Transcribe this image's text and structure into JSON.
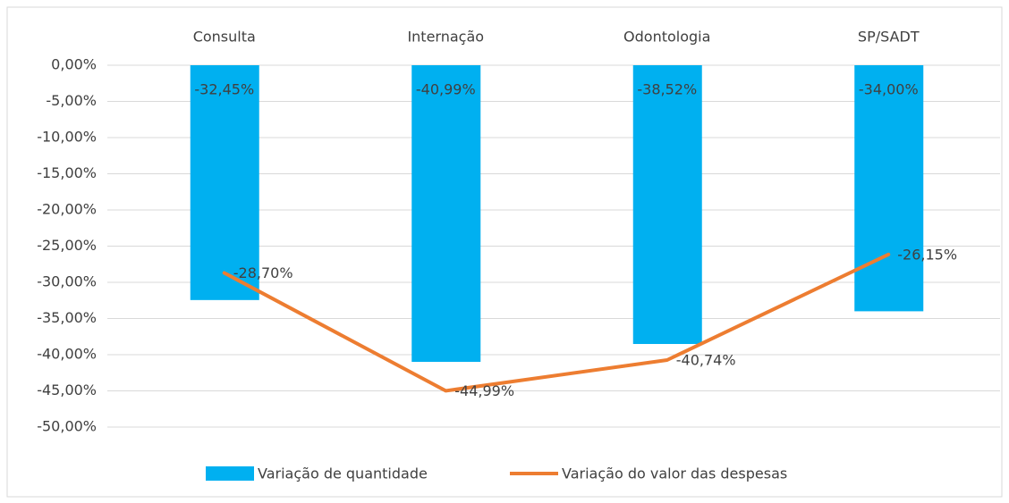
{
  "chart_data": {
    "type": "bar",
    "categories": [
      "Consulta",
      "Internação",
      "Odontologia",
      "SP/SADT"
    ],
    "series": [
      {
        "name": "Variação de quantidade",
        "type": "bar",
        "color": "#00b0f0",
        "values": [
          -32.45,
          -40.99,
          -38.52,
          -34.0
        ],
        "value_labels": [
          "-32,45%",
          "-40,99%",
          "-38,52%",
          "-34,00%"
        ]
      },
      {
        "name": "Variação do valor das despesas",
        "type": "line",
        "color": "#ed7d31",
        "values": [
          -28.7,
          -44.99,
          -40.74,
          -26.15
        ],
        "value_labels": [
          "-28,70%",
          "-44,99%",
          "-40,74%",
          "-26,15%"
        ]
      }
    ],
    "ylim": [
      -50,
      0
    ],
    "yticks": [
      {
        "value": 0,
        "label": "0,00%"
      },
      {
        "value": -5,
        "label": "-5,00%"
      },
      {
        "value": -10,
        "label": "-10,00%"
      },
      {
        "value": -15,
        "label": "-15,00%"
      },
      {
        "value": -20,
        "label": "-20,00%"
      },
      {
        "value": -25,
        "label": "-25,00%"
      },
      {
        "value": -30,
        "label": "-30,00%"
      },
      {
        "value": -35,
        "label": "-35,00%"
      },
      {
        "value": -40,
        "label": "-40,00%"
      },
      {
        "value": -45,
        "label": "-45,00%"
      },
      {
        "value": -50,
        "label": "-50,00%"
      }
    ],
    "grid": true,
    "legend": "bottom"
  }
}
